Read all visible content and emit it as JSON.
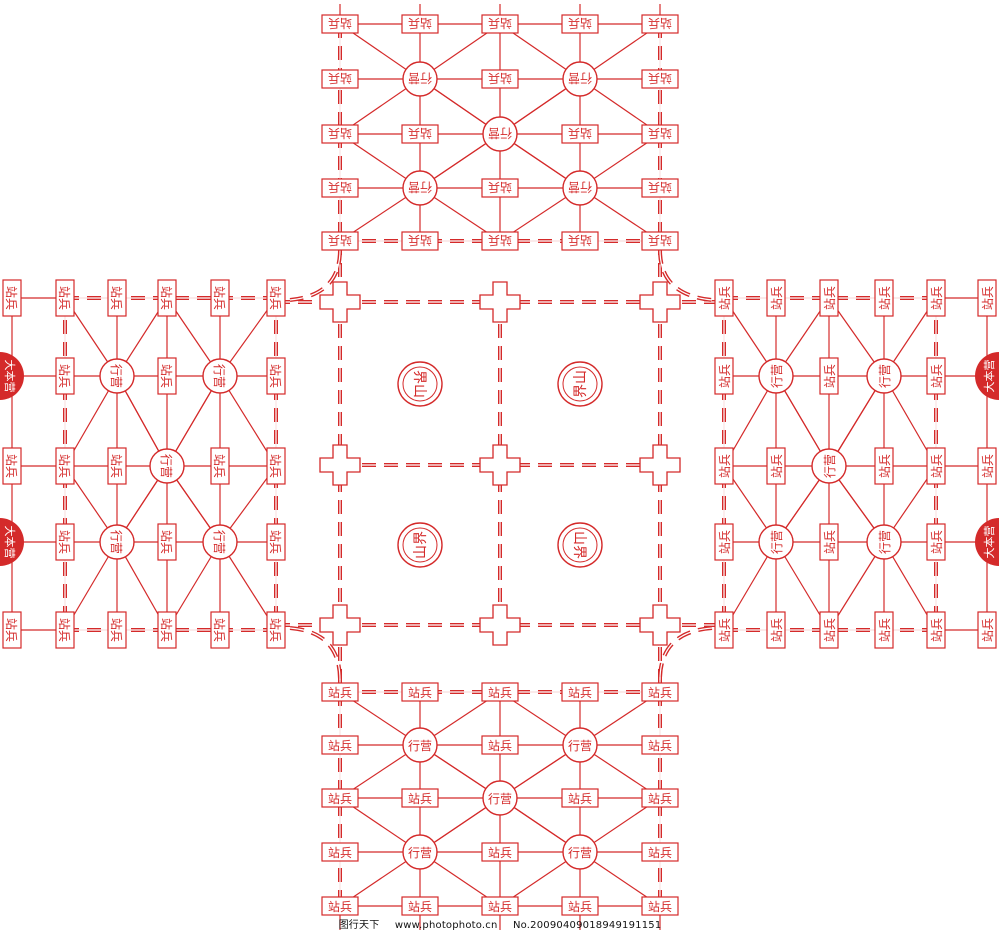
{
  "colors": {
    "ink": "#d42a2a",
    "dashed": "#e0403a",
    "fill_hq": "#d42a2a",
    "background": "#ffffff"
  },
  "pieces": {
    "station": "站兵",
    "camp": "行营",
    "hq": "大本营"
  },
  "center_labels": [
    "界山",
    "界山",
    "山界",
    "山界"
  ],
  "footer": {
    "site": "图行天下",
    "url": "www.photophoto.cn",
    "number": "No.20090409018949191151"
  }
}
